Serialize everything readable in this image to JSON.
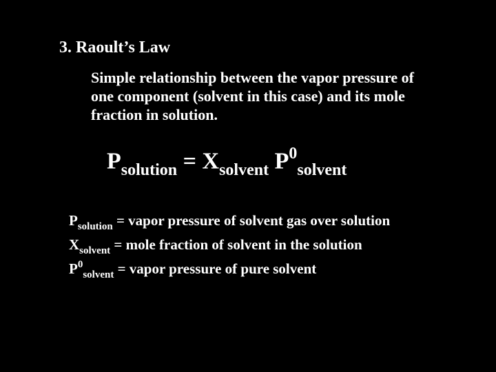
{
  "colors": {
    "background": "#000000",
    "text": "#ffffff"
  },
  "typography": {
    "font_family": "Times New Roman",
    "title_size_pt": 24,
    "body_size_pt": 22,
    "equation_size_pt": 34,
    "defs_size_pt": 21,
    "weight": "bold"
  },
  "title": "3. Raoult’s Law",
  "description": "Simple relationship between the vapor pressure of one component (solvent in this case) and its mole fraction in solution.",
  "equation": {
    "lhs_sym": "P",
    "lhs_sub": "solution",
    "eq": " = ",
    "term1_sym": "X",
    "term1_sub": "solvent",
    "space": " ",
    "term2_sym": "P",
    "term2_sup": "0",
    "term2_sub": "solvent"
  },
  "definitions": [
    {
      "sym": "P",
      "sup": "",
      "sub": "solution",
      "eq": " = ",
      "text": "vapor pressure of solvent gas over solution"
    },
    {
      "sym": "X",
      "sup": "",
      "sub": "solvent",
      "eq": " = ",
      "text": "mole fraction of solvent in the solution"
    },
    {
      "sym": "P",
      "sup": "0",
      "sub": "solvent",
      "eq": " = ",
      "text": "vapor pressure of pure solvent"
    }
  ]
}
